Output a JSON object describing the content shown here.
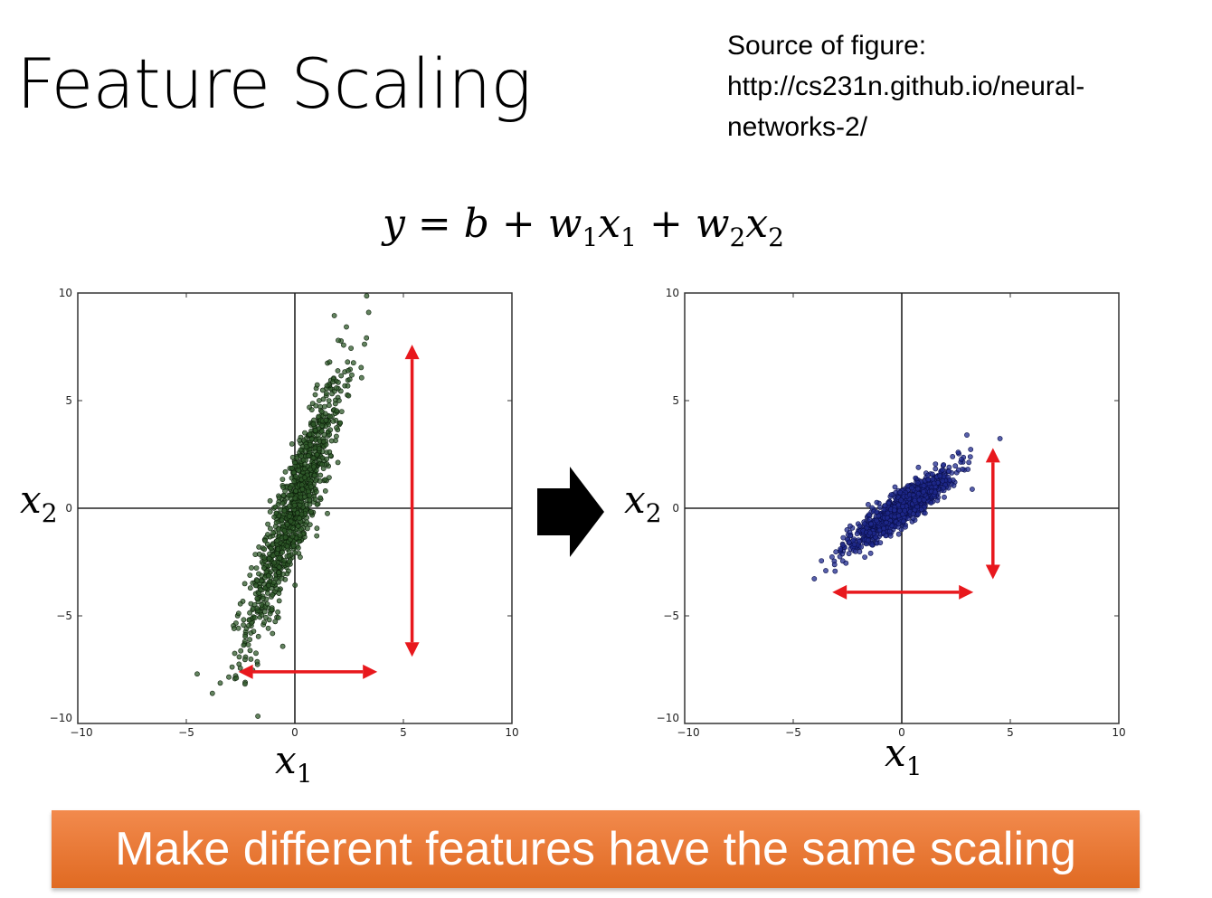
{
  "slide": {
    "title": "Feature Scaling",
    "source_lines": [
      "Source of figure:",
      "http://cs231n.github.io/neural-",
      "networks-2/"
    ],
    "equation": {
      "y": "y",
      "eq": "=",
      "b": "b",
      "plus": "+",
      "w": "w",
      "x": "x",
      "sub1": "1",
      "sub2": "2"
    },
    "banner": "Make different features have the same scaling",
    "axis_var": "x",
    "axis_x_sub": "1",
    "axis_y_sub": "2"
  },
  "chart_data": [
    {
      "type": "scatter",
      "panel": "left",
      "title": "",
      "xlim": [
        -10,
        10
      ],
      "ylim": [
        -10,
        10
      ],
      "x_ticks": [
        -10,
        -5,
        0,
        5,
        10
      ],
      "y_ticks": [
        -10,
        -5,
        0,
        5,
        10
      ],
      "grid": false,
      "zero_lines": true,
      "point_color": "#2f5a2a",
      "point_edge": "#0c1f0a",
      "cloud": {
        "x_std": 1.1,
        "y_std": 3.0,
        "correlation": 0.9,
        "n_points": 1000
      },
      "outliers": [
        [
          -4.5,
          -7.7
        ],
        [
          -3.8,
          -8.6
        ],
        [
          3.4,
          9.1
        ],
        [
          2.0,
          7.8
        ]
      ],
      "arrows": [
        {
          "orientation": "horizontal",
          "from": [
            -2.6,
            -7.6
          ],
          "to": [
            3.8,
            -7.6
          ],
          "color": "#e8181d"
        },
        {
          "orientation": "vertical",
          "from": [
            5.4,
            -6.9
          ],
          "to": [
            5.4,
            7.6
          ],
          "color": "#e8181d"
        }
      ]
    },
    {
      "type": "scatter",
      "panel": "right",
      "title": "",
      "xlim": [
        -10,
        10
      ],
      "ylim": [
        -10,
        10
      ],
      "x_ticks": [
        -10,
        -5,
        0,
        5,
        10
      ],
      "y_ticks": [
        -10,
        -5,
        0,
        5,
        10
      ],
      "grid": false,
      "zero_lines": true,
      "point_color": "#1f2a8e",
      "point_edge": "#0a0f4a",
      "cloud": {
        "x_std": 1.2,
        "y_std": 0.9,
        "correlation": 0.9,
        "n_points": 1000
      },
      "outliers": [
        [
          -3.5,
          -2.9
        ],
        [
          3.0,
          3.4
        ],
        [
          2.6,
          2.6
        ]
      ],
      "arrows": [
        {
          "orientation": "horizontal",
          "from": [
            -3.2,
            -3.9
          ],
          "to": [
            3.3,
            -3.9
          ],
          "color": "#e8181d"
        },
        {
          "orientation": "vertical",
          "from": [
            4.2,
            -3.3
          ],
          "to": [
            4.2,
            2.8
          ],
          "color": "#e8181d"
        }
      ]
    }
  ]
}
